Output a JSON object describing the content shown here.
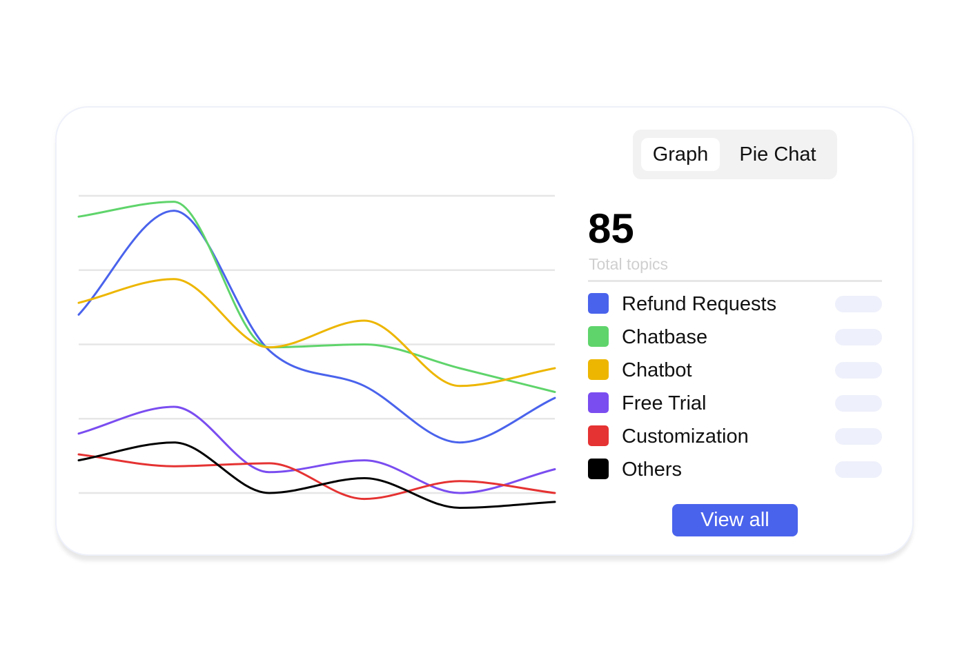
{
  "tabs": [
    {
      "label": "Graph",
      "active": true
    },
    {
      "label": "Pie Chat",
      "active": false
    }
  ],
  "summary": {
    "total_value": "85",
    "total_label": "Total topics"
  },
  "legend": [
    {
      "label": "Refund Requests",
      "color": "#4a63ec"
    },
    {
      "label": "Chatbase",
      "color": "#5fd46b"
    },
    {
      "label": "Chatbot",
      "color": "#edb600"
    },
    {
      "label": "Free Trial",
      "color": "#7a4df0"
    },
    {
      "label": "Customization",
      "color": "#e53232"
    },
    {
      "label": "Others",
      "color": "#000000"
    }
  ],
  "actions": {
    "view_all_label": "View all"
  },
  "chart_data": {
    "type": "line",
    "x": [
      0,
      1,
      2,
      3,
      4,
      5
    ],
    "ylim": [
      0,
      100
    ],
    "grid": true,
    "series": [
      {
        "name": "Refund Requests",
        "color": "#4a63ec",
        "values": [
          60,
          95,
          48,
          36,
          17,
          32
        ]
      },
      {
        "name": "Chatbase",
        "color": "#5fd46b",
        "values": [
          93,
          98,
          49,
          50,
          42,
          34
        ]
      },
      {
        "name": "Chatbot",
        "color": "#edb600",
        "values": [
          64,
          72,
          49,
          58,
          36,
          42
        ]
      },
      {
        "name": "Free Trial",
        "color": "#7a4df0",
        "values": [
          20,
          29,
          7,
          11,
          0,
          8
        ]
      },
      {
        "name": "Customization",
        "color": "#e53232",
        "values": [
          13,
          9,
          10,
          -2,
          4,
          0
        ]
      },
      {
        "name": "Others",
        "color": "#000000",
        "values": [
          11,
          17,
          0,
          5,
          -5,
          -3
        ]
      }
    ]
  }
}
